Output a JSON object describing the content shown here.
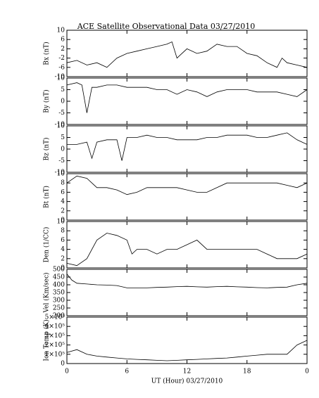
{
  "chart_data": [
    {
      "type": "line",
      "title": "ACE Satellite Observational Data  03/27/2010",
      "ylabel": "Bx (nT)",
      "color": "#000000",
      "xlim": [
        0,
        24
      ],
      "ylim": [
        -10,
        10
      ],
      "yticks": [
        -10,
        -6,
        -2,
        2,
        6,
        10
      ],
      "x": [
        0,
        1,
        2,
        3,
        4,
        5,
        6,
        7,
        8,
        9,
        10,
        10.5,
        11,
        12,
        13,
        14,
        15,
        16,
        17,
        18,
        19,
        20,
        21,
        21.5,
        22,
        23,
        24
      ],
      "values": [
        -4,
        -3,
        -5,
        -4,
        -6,
        -2,
        0,
        1,
        2,
        3,
        4,
        5,
        -2,
        2,
        0,
        1,
        4,
        3,
        3,
        0,
        -1,
        -4,
        -6,
        -2,
        -4,
        -5,
        -6
      ]
    },
    {
      "type": "line",
      "ylabel": "By (nT)",
      "color": "#000000",
      "xlim": [
        0,
        24
      ],
      "ylim": [
        -10,
        10
      ],
      "yticks": [
        -10,
        -5,
        0,
        5,
        10
      ],
      "x": [
        0,
        1,
        1.5,
        2,
        2.5,
        3,
        4,
        5,
        6,
        7,
        8,
        9,
        10,
        11,
        12,
        13,
        14,
        15,
        16,
        17,
        18,
        19,
        20,
        21,
        22,
        23,
        24
      ],
      "values": [
        7,
        8,
        7,
        -5,
        6,
        6,
        7,
        7,
        6,
        6,
        6,
        5,
        5,
        3,
        5,
        4,
        2,
        4,
        5,
        5,
        5,
        4,
        4,
        4,
        3,
        2,
        5
      ]
    },
    {
      "type": "line",
      "ylabel": "Bz (nT)",
      "color": "#000000",
      "xlim": [
        0,
        24
      ],
      "ylim": [
        -10,
        10
      ],
      "yticks": [
        -10,
        -5,
        0,
        5,
        10
      ],
      "x": [
        0,
        1,
        2,
        2.5,
        3,
        4,
        5,
        5.5,
        6,
        7,
        8,
        9,
        10,
        11,
        12,
        13,
        14,
        15,
        16,
        17,
        18,
        19,
        20,
        21,
        22,
        23,
        24
      ],
      "values": [
        2,
        2,
        3,
        -4,
        3,
        4,
        4,
        -5,
        5,
        5,
        6,
        5,
        5,
        4,
        4,
        4,
        5,
        5,
        6,
        6,
        6,
        5,
        5,
        6,
        7,
        4,
        2
      ]
    },
    {
      "type": "line",
      "ylabel": "Bt (nT)",
      "color": "#000000",
      "xlim": [
        0,
        24
      ],
      "ylim": [
        0,
        10
      ],
      "yticks": [
        0,
        2,
        4,
        6,
        8,
        10
      ],
      "x": [
        0,
        1,
        2,
        3,
        4,
        5,
        6,
        7,
        8,
        9,
        10,
        11,
        12,
        13,
        14,
        15,
        16,
        17,
        18,
        19,
        20,
        21,
        22,
        23,
        24
      ],
      "values": [
        8,
        9.5,
        9,
        7,
        7,
        6.5,
        5.5,
        6,
        7,
        7,
        7,
        7,
        6.5,
        6,
        6,
        7,
        8,
        8,
        8,
        8,
        8,
        8,
        7.5,
        7,
        8
      ]
    },
    {
      "type": "line",
      "ylabel": "Den (1/CC)",
      "color": "#000000",
      "xlim": [
        0,
        24
      ],
      "ylim": [
        0,
        10
      ],
      "yticks": [
        0,
        2,
        4,
        6,
        8,
        10
      ],
      "x": [
        0,
        1,
        2,
        3,
        4,
        5,
        6,
        6.5,
        7,
        8,
        9,
        10,
        11,
        12,
        13,
        14,
        15,
        16,
        17,
        18,
        19,
        20,
        21,
        22,
        23,
        24
      ],
      "values": [
        1,
        0.5,
        2,
        6,
        7.5,
        7,
        6,
        3,
        4,
        4,
        3,
        4,
        4,
        5,
        6,
        4,
        4,
        4,
        4,
        4,
        4,
        3,
        2,
        2,
        2,
        3
      ]
    },
    {
      "type": "line",
      "ylabel": "Vel (Km/sec)",
      "color": "#000000",
      "xlim": [
        0,
        24
      ],
      "ylim": [
        200,
        500
      ],
      "yticks": [
        200,
        250,
        300,
        350,
        400,
        450,
        500
      ],
      "x": [
        0,
        0.5,
        1,
        2,
        3,
        4,
        5,
        6,
        7,
        8,
        9,
        10,
        11,
        12,
        13,
        14,
        15,
        16,
        17,
        18,
        19,
        20,
        21,
        22,
        23,
        24
      ],
      "values": [
        470,
        430,
        410,
        405,
        400,
        398,
        395,
        380,
        380,
        380,
        383,
        385,
        388,
        390,
        387,
        385,
        388,
        390,
        387,
        385,
        382,
        380,
        383,
        385,
        400,
        410
      ]
    },
    {
      "type": "line",
      "ylabel": "Ion Temp (K)",
      "xlabel": "UT (Hour)  03/27/2010",
      "color": "#000000",
      "xlim": [
        0,
        24
      ],
      "ylim": [
        0,
        500000
      ],
      "yticks": [
        0,
        {
          "value": 100000,
          "label": "1×10⁵"
        },
        {
          "value": 200000,
          "label": "2×10⁵"
        },
        {
          "value": 300000,
          "label": "3×10⁵"
        },
        {
          "value": 400000,
          "label": "4×10⁵"
        },
        {
          "value": 500000,
          "label": "5×10⁵"
        }
      ],
      "xticks": [
        0,
        6,
        12,
        18,
        {
          "value": 24,
          "label": "0"
        }
      ],
      "x": [
        0,
        1,
        2,
        3,
        4,
        5,
        6,
        7,
        8,
        9,
        10,
        11,
        12,
        13,
        14,
        15,
        16,
        17,
        18,
        19,
        20,
        21,
        22,
        23,
        24
      ],
      "values": [
        120000,
        150000,
        100000,
        80000,
        70000,
        60000,
        50000,
        45000,
        40000,
        35000,
        30000,
        35000,
        40000,
        45000,
        50000,
        55000,
        60000,
        70000,
        80000,
        90000,
        100000,
        100000,
        100000,
        200000,
        250000
      ]
    }
  ]
}
